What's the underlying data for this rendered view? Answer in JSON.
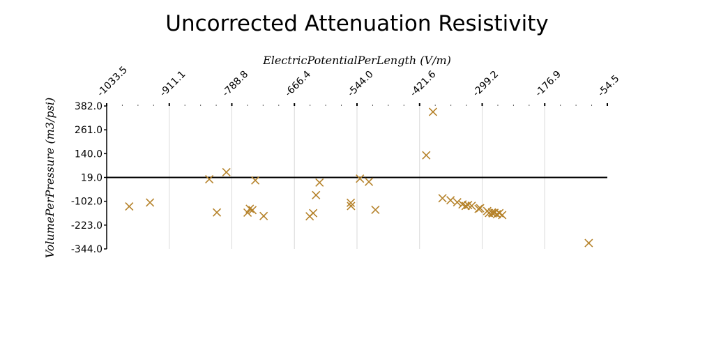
{
  "chart_data": {
    "type": "scatter",
    "title": "Uncorrected Attenuation Resistivity",
    "xlabel": "ElectricPotentialPerLength (V/m)",
    "ylabel": "VolumePerPressure (m3/psi)",
    "x_ticks": [
      "-1033.5",
      "-911.1",
      "-788.8",
      "-666.4",
      "-544.0",
      "-421.6",
      "-299.2",
      "-176.9",
      "-54.5"
    ],
    "y_ticks": [
      "382.0",
      "261.0",
      "140.0",
      "19.0",
      "-102.0",
      "-223.0",
      "-344.0"
    ],
    "xlim": [
      -1033.5,
      -54.5
    ],
    "ylim": [
      -344.0,
      382.0
    ],
    "x_axis_position": "top",
    "zero_line_y": 19.0,
    "grid": "vertical",
    "marker": "x",
    "marker_color": "#b5822a",
    "series": [
      {
        "points": [
          [
            -989.4,
            -128.3
          ],
          [
            -948.8,
            -108.4
          ],
          [
            -832.9,
            10.0
          ],
          [
            -818.0,
            -158.7
          ],
          [
            -799.4,
            45.7
          ],
          [
            -758.0,
            -159.7
          ],
          [
            -753.6,
            -140.2
          ],
          [
            -748.5,
            -146.7
          ],
          [
            -742.9,
            4.0
          ],
          [
            -726.5,
            -176.8
          ],
          [
            -636.5,
            -178.1
          ],
          [
            -629.7,
            -162.3
          ],
          [
            -624.1,
            -70.7
          ],
          [
            -617.3,
            -7.0
          ],
          [
            -556.2,
            -109.5
          ],
          [
            -555.7,
            -126.1
          ],
          [
            -538.2,
            13.1
          ],
          [
            -520.7,
            -2.9
          ],
          [
            -508.0,
            -145.6
          ],
          [
            -408.6,
            131.6
          ],
          [
            -395.4,
            352.3
          ],
          [
            -376.8,
            -86.5
          ],
          [
            -361.1,
            -96.7
          ],
          [
            -348.0,
            -106.9
          ],
          [
            -337.7,
            -117.9
          ],
          [
            -331.6,
            -125.5
          ],
          [
            -326.8,
            -121.3
          ],
          [
            -319.7,
            -125.3
          ],
          [
            -306.2,
            -140.6
          ],
          [
            -303.2,
            -137.0
          ],
          [
            -289.3,
            -151.6
          ],
          [
            -285.9,
            -161.5
          ],
          [
            -280.1,
            -158.3
          ],
          [
            -278.7,
            -163.4
          ],
          [
            -275.2,
            -160.3
          ],
          [
            -270.3,
            -167.4
          ],
          [
            -265.5,
            -162.1
          ],
          [
            -260.0,
            -172.2
          ],
          [
            -90.8,
            -314.0
          ]
        ]
      }
    ]
  }
}
